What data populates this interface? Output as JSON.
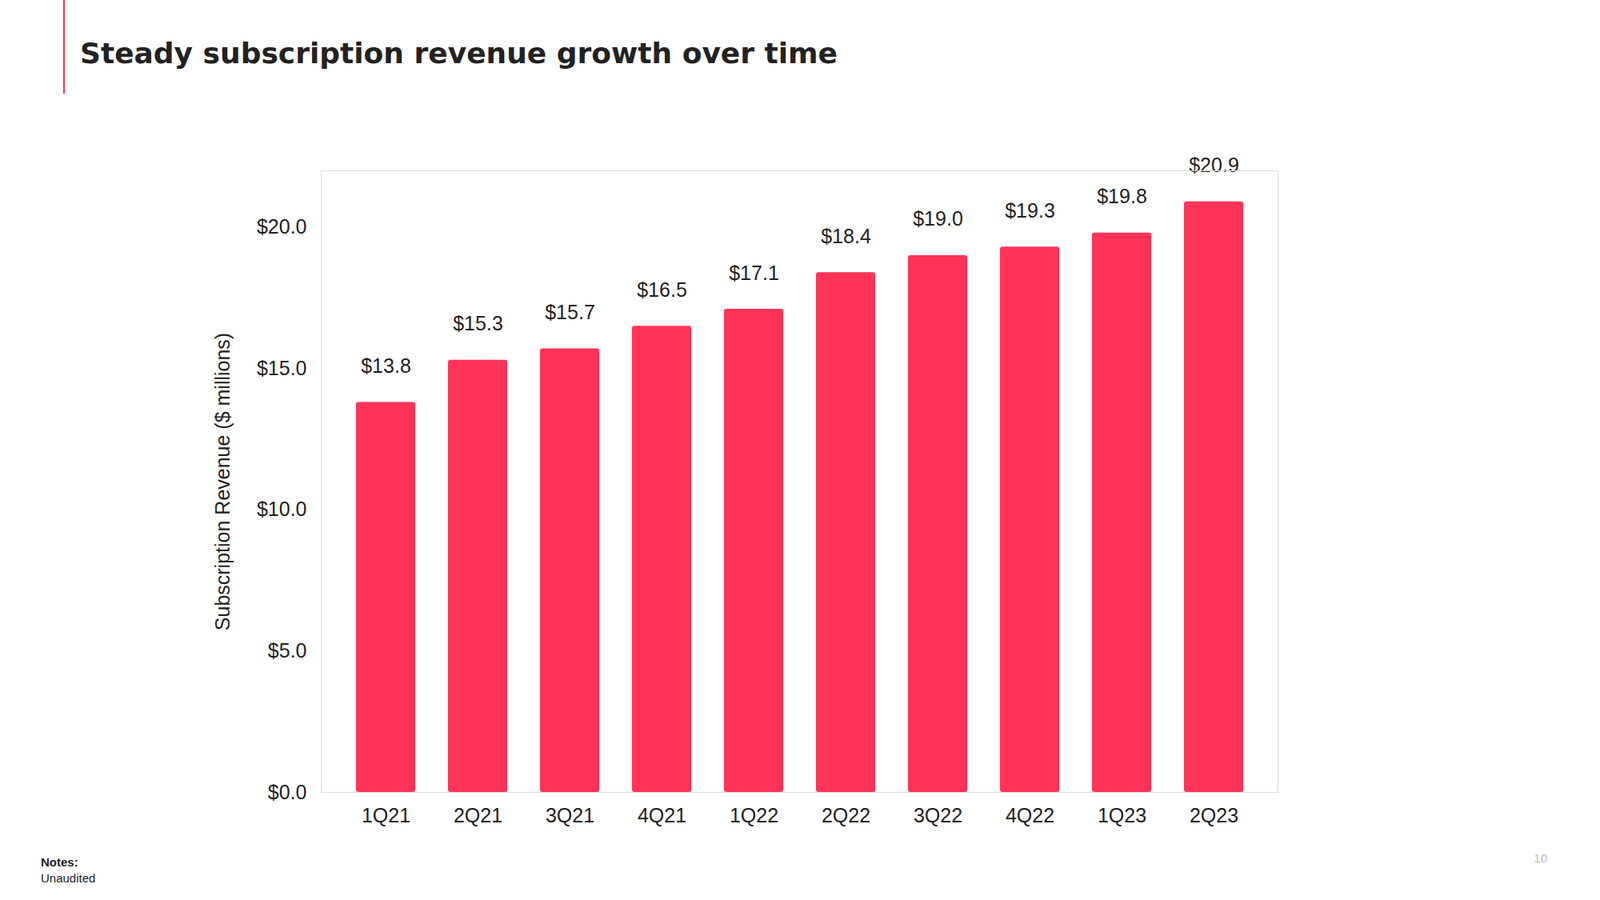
{
  "chart_data": {
    "type": "bar",
    "title": "Steady subscription revenue growth over time",
    "y_label": "Subscription Revenue ($ millions)",
    "categories": [
      "1Q21",
      "2Q21",
      "3Q21",
      "4Q21",
      "1Q22",
      "2Q22",
      "3Q22",
      "4Q22",
      "1Q23",
      "2Q23"
    ],
    "values": [
      13.8,
      15.3,
      15.7,
      16.5,
      17.1,
      18.4,
      19.0,
      19.3,
      19.8,
      20.9
    ],
    "value_labels": [
      "$13.8",
      "$15.3",
      "$15.7",
      "$16.5",
      "$17.1",
      "$18.4",
      "$19.0",
      "$19.3",
      "$19.8",
      "$20.9"
    ],
    "color": "#ff3358",
    "ylim": [
      0,
      22
    ],
    "yticks": [
      {
        "value": 0,
        "label": "$0.0"
      },
      {
        "value": 5,
        "label": "$5.0"
      },
      {
        "value": 10,
        "label": "$10.0"
      },
      {
        "value": 15,
        "label": "$15.0"
      },
      {
        "value": 20,
        "label": "$20.0"
      }
    ],
    "grid": false,
    "data_labels": true,
    "notes_title": "Notes:",
    "notes": "Unaudited",
    "page_number": "10"
  }
}
